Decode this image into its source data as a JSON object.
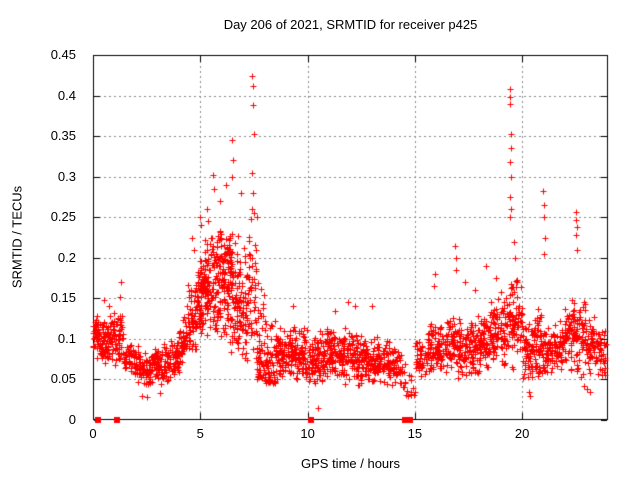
{
  "page": {
    "background": "#ffffff"
  },
  "chart_data": {
    "type": "scatter",
    "title": "Day 206 of 2021, SRMTID for receiver p425",
    "xlabel": "GPS time / hours",
    "ylabel": "SRMTID / TECUs",
    "xlim": [
      0,
      24
    ],
    "ylim": [
      0,
      0.45
    ],
    "xticks": [
      0,
      5,
      10,
      15,
      20
    ],
    "xtick_labels": [
      "0",
      "5",
      "10",
      "15",
      "20"
    ],
    "yticks": [
      0,
      0.05,
      0.1,
      0.15,
      0.2,
      0.25,
      0.3,
      0.35,
      0.4,
      0.45
    ],
    "ytick_labels": [
      "0",
      "0.05",
      "0.1",
      "0.15",
      "0.2",
      "0.25",
      "0.3",
      "0.35",
      "0.4",
      "0.45"
    ],
    "grid": true,
    "legend": "none",
    "marker": {
      "shape": "plus",
      "color": "#ff0000",
      "size": 7
    },
    "square_marker": {
      "shape": "filled-square",
      "color": "#ff0000",
      "size": 6
    },
    "axis_color": "#000000",
    "grid_color": "#8c8c8c",
    "seed": 206,
    "series": [
      {
        "name": "SRMTID",
        "representation": "density-bins",
        "bin_format": [
          "t_start_h",
          "t_end_h",
          "n_points",
          "v_min_TECU",
          "v_max_TECU",
          "shape(0=mid,1=low)"
        ],
        "bins": [
          [
            0.0,
            0.3,
            45,
            0.07,
            0.135,
            0
          ],
          [
            0.3,
            0.7,
            50,
            0.065,
            0.125,
            0
          ],
          [
            0.7,
            1.0,
            40,
            0.07,
            0.145,
            0
          ],
          [
            1.0,
            1.4,
            45,
            0.065,
            0.13,
            0
          ],
          [
            1.4,
            1.8,
            30,
            0.055,
            0.105,
            0
          ],
          [
            1.8,
            2.2,
            35,
            0.045,
            0.095,
            0
          ],
          [
            2.2,
            2.7,
            50,
            0.038,
            0.085,
            0
          ],
          [
            2.7,
            3.2,
            50,
            0.04,
            0.09,
            0
          ],
          [
            3.2,
            3.6,
            40,
            0.045,
            0.095,
            0
          ],
          [
            3.6,
            4.0,
            42,
            0.05,
            0.105,
            0
          ],
          [
            4.0,
            4.4,
            45,
            0.06,
            0.13,
            0
          ],
          [
            4.4,
            4.8,
            55,
            0.075,
            0.17,
            0
          ],
          [
            4.8,
            5.2,
            65,
            0.09,
            0.21,
            0
          ],
          [
            5.2,
            5.6,
            70,
            0.1,
            0.235,
            0
          ],
          [
            5.6,
            6.0,
            75,
            0.1,
            0.25,
            0
          ],
          [
            6.0,
            6.4,
            75,
            0.09,
            0.25,
            0
          ],
          [
            6.4,
            6.8,
            70,
            0.07,
            0.24,
            0
          ],
          [
            6.8,
            7.2,
            55,
            0.06,
            0.22,
            0
          ],
          [
            7.2,
            7.6,
            45,
            0.06,
            0.26,
            0
          ],
          [
            7.6,
            8.0,
            50,
            0.05,
            0.18,
            1
          ],
          [
            8.0,
            8.5,
            55,
            0.045,
            0.14,
            1
          ],
          [
            8.5,
            9.0,
            60,
            0.045,
            0.12,
            0
          ],
          [
            9.0,
            9.5,
            55,
            0.05,
            0.12,
            0
          ],
          [
            9.5,
            10.0,
            55,
            0.045,
            0.115,
            0
          ],
          [
            10.0,
            10.5,
            55,
            0.04,
            0.11,
            0
          ],
          [
            10.5,
            11.0,
            55,
            0.04,
            0.115,
            0
          ],
          [
            11.0,
            11.5,
            55,
            0.045,
            0.12,
            0
          ],
          [
            11.5,
            12.0,
            55,
            0.04,
            0.115,
            0
          ],
          [
            12.0,
            12.5,
            55,
            0.04,
            0.11,
            0
          ],
          [
            12.5,
            13.0,
            55,
            0.04,
            0.105,
            0
          ],
          [
            13.0,
            13.5,
            50,
            0.04,
            0.105,
            0
          ],
          [
            13.5,
            14.0,
            50,
            0.04,
            0.1,
            0
          ],
          [
            14.0,
            14.4,
            35,
            0.04,
            0.09,
            0
          ],
          [
            14.4,
            15.0,
            18,
            0.03,
            0.075,
            1
          ],
          [
            15.0,
            15.5,
            40,
            0.045,
            0.1,
            0
          ],
          [
            15.5,
            16.0,
            50,
            0.05,
            0.12,
            0
          ],
          [
            16.0,
            16.5,
            52,
            0.05,
            0.12,
            0
          ],
          [
            16.5,
            17.0,
            55,
            0.055,
            0.135,
            0
          ],
          [
            17.0,
            17.5,
            55,
            0.05,
            0.13,
            0
          ],
          [
            17.5,
            18.0,
            55,
            0.05,
            0.13,
            0
          ],
          [
            18.0,
            18.5,
            55,
            0.055,
            0.14,
            0
          ],
          [
            18.5,
            19.0,
            55,
            0.06,
            0.15,
            0
          ],
          [
            19.0,
            19.5,
            55,
            0.05,
            0.18,
            0
          ],
          [
            19.5,
            20.0,
            60,
            0.06,
            0.19,
            0
          ],
          [
            20.0,
            20.5,
            55,
            0.04,
            0.13,
            0
          ],
          [
            20.5,
            21.0,
            55,
            0.04,
            0.15,
            0
          ],
          [
            21.0,
            21.5,
            50,
            0.05,
            0.12,
            0
          ],
          [
            21.5,
            22.0,
            50,
            0.05,
            0.125,
            0
          ],
          [
            22.0,
            22.5,
            55,
            0.06,
            0.15,
            0
          ],
          [
            22.5,
            23.0,
            58,
            0.05,
            0.16,
            0
          ],
          [
            23.0,
            23.4,
            48,
            0.05,
            0.13,
            0
          ],
          [
            23.4,
            23.9,
            42,
            0.05,
            0.12,
            0
          ]
        ],
        "extra_points": [
          [
            1.3,
            0.17
          ],
          [
            1.28,
            0.152
          ],
          [
            0.52,
            0.148
          ],
          [
            4.62,
            0.225
          ],
          [
            4.7,
            0.21
          ],
          [
            5.0,
            0.25
          ],
          [
            5.05,
            0.24
          ],
          [
            5.3,
            0.26
          ],
          [
            5.35,
            0.245
          ],
          [
            5.58,
            0.302
          ],
          [
            5.62,
            0.285
          ],
          [
            5.9,
            0.27
          ],
          [
            6.2,
            0.29
          ],
          [
            6.47,
            0.3
          ],
          [
            6.5,
            0.345
          ],
          [
            6.52,
            0.32
          ],
          [
            6.9,
            0.28
          ],
          [
            7.4,
            0.26
          ],
          [
            7.42,
            0.424
          ],
          [
            7.43,
            0.305
          ],
          [
            7.44,
            0.412
          ],
          [
            7.45,
            0.28
          ],
          [
            7.46,
            0.388
          ],
          [
            7.48,
            0.352
          ],
          [
            7.5,
            0.255
          ],
          [
            7.65,
            0.25
          ],
          [
            9.3,
            0.14
          ],
          [
            10.5,
            0.015
          ],
          [
            11.3,
            0.135
          ],
          [
            11.9,
            0.145
          ],
          [
            12.2,
            0.14
          ],
          [
            13.0,
            0.14
          ],
          [
            15.9,
            0.165
          ],
          [
            15.92,
            0.18
          ],
          [
            16.88,
            0.215
          ],
          [
            16.92,
            0.2
          ],
          [
            16.9,
            0.185
          ],
          [
            17.35,
            0.17
          ],
          [
            17.8,
            0.16
          ],
          [
            18.3,
            0.19
          ],
          [
            18.8,
            0.175
          ],
          [
            19.41,
            0.25
          ],
          [
            19.42,
            0.408
          ],
          [
            19.43,
            0.39
          ],
          [
            19.44,
            0.398
          ],
          [
            19.44,
            0.275
          ],
          [
            19.45,
            0.318
          ],
          [
            19.46,
            0.352
          ],
          [
            19.47,
            0.3
          ],
          [
            19.48,
            0.335
          ],
          [
            19.5,
            0.26
          ],
          [
            19.6,
            0.22
          ],
          [
            19.65,
            0.2
          ],
          [
            20.98,
            0.282
          ],
          [
            21.0,
            0.265
          ],
          [
            21.02,
            0.25
          ],
          [
            21.05,
            0.225
          ],
          [
            21.0,
            0.205
          ],
          [
            22.5,
            0.256
          ],
          [
            22.52,
            0.247
          ],
          [
            22.55,
            0.238
          ],
          [
            22.53,
            0.228
          ],
          [
            22.57,
            0.21
          ],
          [
            2.3,
            0.03
          ],
          [
            2.5,
            0.028
          ],
          [
            3.1,
            0.033
          ],
          [
            14.7,
            0.03
          ],
          [
            20.3,
            0.035
          ],
          [
            20.35,
            0.03
          ],
          [
            22.9,
            0.042
          ],
          [
            23.0,
            0.038
          ],
          [
            23.15,
            0.035
          ]
        ]
      },
      {
        "name": "baseline-flags",
        "representation": "points",
        "points": [
          [
            0.21,
            0
          ],
          [
            1.14,
            0
          ],
          [
            10.16,
            0
          ],
          [
            14.52,
            0
          ],
          [
            14.75,
            0
          ]
        ]
      }
    ]
  }
}
